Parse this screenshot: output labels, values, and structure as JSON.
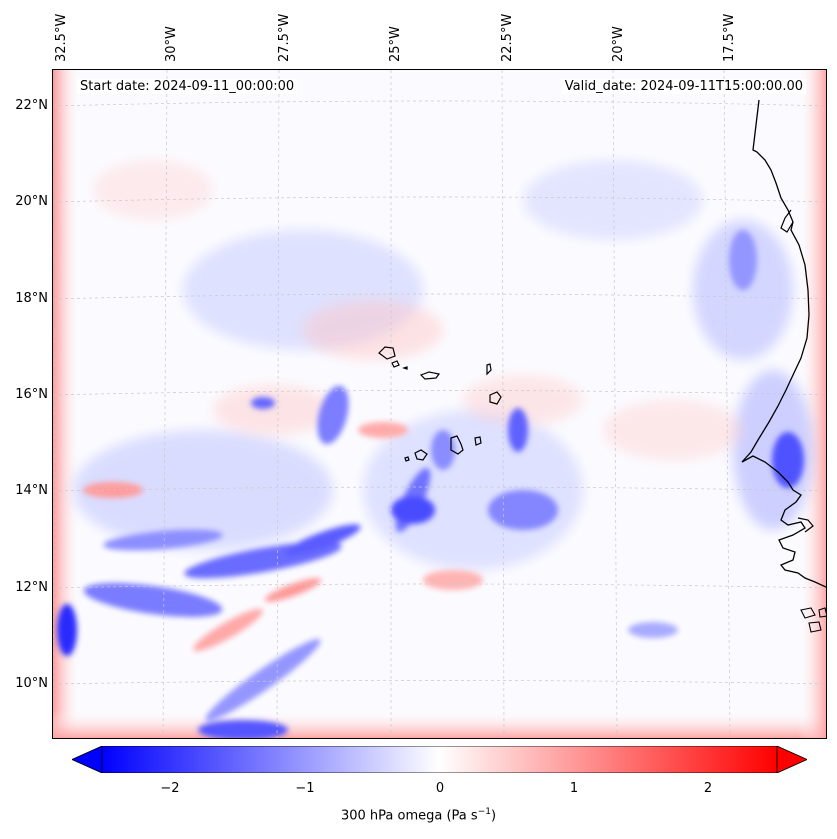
{
  "map": {
    "start_date": "Start date: 2024-09-11_00:00:00",
    "valid_date": "Valid_date: 2024-09-11T15:00:00.00",
    "lon_labels": [
      "32.5°W",
      "30°W",
      "27.5°W",
      "25°W",
      "22.5°W",
      "20°W",
      "17.5°W"
    ],
    "lat_labels": [
      "22°N",
      "20°N",
      "18°N",
      "16°N",
      "14°N",
      "12°N",
      "10°N"
    ],
    "field": "300 hPa omega",
    "units": "Pa s",
    "units_exponent": "−1"
  },
  "colorbar": {
    "tick_labels": [
      "−2",
      "−1",
      "0",
      "1",
      "2"
    ],
    "range": [
      -2.5,
      2.5
    ],
    "negative_color": "#0000ff",
    "positive_color": "#ff0000",
    "neutral_color": "#ffffff"
  },
  "colors": {
    "coast": "#000000",
    "grid": "#c8c8c8"
  }
}
